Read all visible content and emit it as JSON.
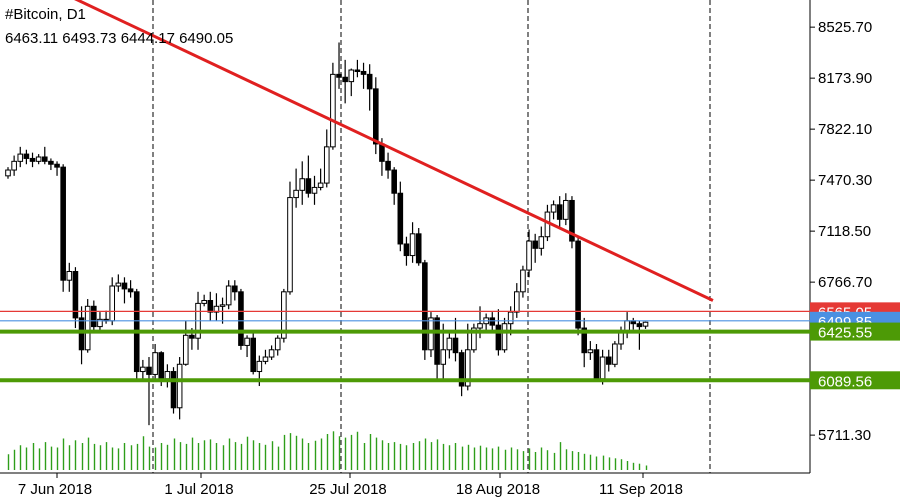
{
  "chart_data": {
    "type": "candlestick",
    "symbol": "#Bitcoin",
    "timeframe": "D1",
    "ohlc": {
      "open": "6463.11",
      "high": "6493.73",
      "low": "6444.17",
      "close": "6490.05"
    },
    "y_ticks": [
      "8525.70",
      "8173.90",
      "7822.10",
      "7470.30",
      "7118.50",
      "6766.70",
      "5711.30"
    ],
    "x_ticks": [
      "7 Jun 2018",
      "1 Jul 2018",
      "25 Jul 2018",
      "18 Aug 2018",
      "11 Sep 2018"
    ],
    "ylim": [
      5450,
      9020
    ],
    "levels": [
      {
        "value": "6565.05",
        "color": "#e53935",
        "kind": "line"
      },
      {
        "value": "6499.85",
        "color": "#4a90e2",
        "kind": "line"
      },
      {
        "value": "6425.55",
        "color": "#4d9a06",
        "kind": "zone"
      },
      {
        "value": "6089.56",
        "color": "#4d9a06",
        "kind": "zone"
      }
    ],
    "trendline": {
      "from": {
        "date": "2018-05-27",
        "price": 9040
      },
      "to": {
        "date": "2018-09-24",
        "price": 6640
      },
      "color": "#e02020"
    },
    "candles": [
      [
        "2018-06-01",
        7500,
        7560,
        7480,
        7540
      ],
      [
        "2018-06-02",
        7540,
        7640,
        7500,
        7600
      ],
      [
        "2018-06-03",
        7600,
        7700,
        7560,
        7650
      ],
      [
        "2018-06-04",
        7650,
        7680,
        7580,
        7620
      ],
      [
        "2018-06-05",
        7620,
        7660,
        7560,
        7600
      ],
      [
        "2018-06-06",
        7600,
        7650,
        7580,
        7630
      ],
      [
        "2018-06-07",
        7630,
        7700,
        7580,
        7600
      ],
      [
        "2018-06-08",
        7600,
        7620,
        7540,
        7580
      ],
      [
        "2018-06-09",
        7580,
        7600,
        7500,
        7560
      ],
      [
        "2018-06-10",
        7560,
        7580,
        6700,
        6780
      ],
      [
        "2018-06-11",
        6780,
        6900,
        6700,
        6840
      ],
      [
        "2018-06-12",
        6840,
        6870,
        6450,
        6520
      ],
      [
        "2018-06-13",
        6520,
        6600,
        6200,
        6300
      ],
      [
        "2018-06-14",
        6300,
        6650,
        6280,
        6600
      ],
      [
        "2018-06-15",
        6600,
        6640,
        6420,
        6460
      ],
      [
        "2018-06-16",
        6460,
        6560,
        6420,
        6510
      ],
      [
        "2018-06-17",
        6510,
        6570,
        6480,
        6500
      ],
      [
        "2018-06-18",
        6500,
        6800,
        6470,
        6740
      ],
      [
        "2018-06-19",
        6740,
        6820,
        6700,
        6760
      ],
      [
        "2018-06-20",
        6760,
        6800,
        6620,
        6720
      ],
      [
        "2018-06-21",
        6720,
        6780,
        6660,
        6700
      ],
      [
        "2018-06-22",
        6700,
        6720,
        6080,
        6150
      ],
      [
        "2018-06-23",
        6150,
        6230,
        6100,
        6180
      ],
      [
        "2018-06-24",
        6180,
        6250,
        5780,
        6130
      ],
      [
        "2018-06-25",
        6130,
        6340,
        6100,
        6280
      ],
      [
        "2018-06-26",
        6280,
        6290,
        6050,
        6100
      ],
      [
        "2018-06-27",
        6100,
        6200,
        6040,
        6150
      ],
      [
        "2018-06-28",
        6150,
        6180,
        5860,
        5900
      ],
      [
        "2018-06-29",
        5900,
        6250,
        5820,
        6200
      ],
      [
        "2018-06-30",
        6200,
        6500,
        6190,
        6400
      ],
      [
        "2018-07-01",
        6400,
        6450,
        6300,
        6380
      ],
      [
        "2018-07-02",
        6380,
        6700,
        6300,
        6620
      ],
      [
        "2018-07-03",
        6620,
        6680,
        6600,
        6640
      ],
      [
        "2018-07-04",
        6640,
        6700,
        6500,
        6560
      ],
      [
        "2018-07-05",
        6560,
        6690,
        6500,
        6600
      ],
      [
        "2018-07-06",
        6600,
        6660,
        6480,
        6610
      ],
      [
        "2018-07-07",
        6610,
        6780,
        6580,
        6740
      ],
      [
        "2018-07-08",
        6740,
        6780,
        6640,
        6700
      ],
      [
        "2018-07-09",
        6700,
        6720,
        6300,
        6330
      ],
      [
        "2018-07-10",
        6330,
        6400,
        6250,
        6380
      ],
      [
        "2018-07-11",
        6380,
        6420,
        6130,
        6150
      ],
      [
        "2018-07-12",
        6150,
        6260,
        6050,
        6220
      ],
      [
        "2018-07-13",
        6220,
        6300,
        6200,
        6250
      ],
      [
        "2018-07-14",
        6250,
        6330,
        6230,
        6300
      ],
      [
        "2018-07-15",
        6300,
        6400,
        6260,
        6380
      ],
      [
        "2018-07-16",
        6380,
        6720,
        6350,
        6700
      ],
      [
        "2018-07-17",
        6700,
        7460,
        6680,
        7350
      ],
      [
        "2018-07-18",
        7350,
        7550,
        7280,
        7400
      ],
      [
        "2018-07-19",
        7400,
        7600,
        7300,
        7480
      ],
      [
        "2018-07-20",
        7480,
        7640,
        7350,
        7380
      ],
      [
        "2018-07-21",
        7380,
        7500,
        7300,
        7420
      ],
      [
        "2018-07-22",
        7420,
        7550,
        7400,
        7450
      ],
      [
        "2018-07-23",
        7450,
        7820,
        7420,
        7700
      ],
      [
        "2018-07-24",
        7700,
        8280,
        7680,
        8200
      ],
      [
        "2018-07-25",
        8200,
        8420,
        8100,
        8180
      ],
      [
        "2018-07-26",
        8180,
        8300,
        8000,
        8150
      ],
      [
        "2018-07-27",
        8150,
        8240,
        8050,
        8230
      ],
      [
        "2018-07-28",
        8230,
        8300,
        8180,
        8220
      ],
      [
        "2018-07-29",
        8220,
        8280,
        8100,
        8200
      ],
      [
        "2018-07-30",
        8200,
        8270,
        7950,
        8100
      ],
      [
        "2018-07-31",
        8100,
        8180,
        7650,
        7720
      ],
      [
        "2018-08-01",
        7720,
        7760,
        7500,
        7600
      ],
      [
        "2018-08-02",
        7600,
        7660,
        7480,
        7540
      ],
      [
        "2018-08-03",
        7540,
        7560,
        7300,
        7380
      ],
      [
        "2018-08-04",
        7380,
        7460,
        6980,
        7030
      ],
      [
        "2018-08-05",
        7030,
        7080,
        6880,
        6950
      ],
      [
        "2018-08-06",
        6950,
        7180,
        6900,
        7100
      ],
      [
        "2018-08-07",
        7100,
        7140,
        6880,
        6900
      ],
      [
        "2018-08-08",
        6900,
        6920,
        6230,
        6300
      ],
      [
        "2018-08-09",
        6300,
        6560,
        6250,
        6520
      ],
      [
        "2018-08-10",
        6520,
        6540,
        6100,
        6200
      ],
      [
        "2018-08-11",
        6200,
        6480,
        6100,
        6300
      ],
      [
        "2018-08-12",
        6300,
        6420,
        6240,
        6380
      ],
      [
        "2018-08-13",
        6380,
        6520,
        6220,
        6280
      ],
      [
        "2018-08-14",
        6280,
        6300,
        5980,
        6050
      ],
      [
        "2018-08-15",
        6050,
        6480,
        6020,
        6300
      ],
      [
        "2018-08-16",
        6300,
        6480,
        6280,
        6450
      ],
      [
        "2018-08-17",
        6450,
        6600,
        6380,
        6480
      ],
      [
        "2018-08-18",
        6480,
        6550,
        6420,
        6520
      ],
      [
        "2018-08-19",
        6520,
        6560,
        6430,
        6470
      ],
      [
        "2018-08-20",
        6470,
        6580,
        6260,
        6300
      ],
      [
        "2018-08-21",
        6300,
        6520,
        6280,
        6480
      ],
      [
        "2018-08-22",
        6480,
        6600,
        6400,
        6560
      ],
      [
        "2018-08-23",
        6560,
        6760,
        6520,
        6700
      ],
      [
        "2018-08-24",
        6700,
        6880,
        6660,
        6850
      ],
      [
        "2018-08-25",
        6850,
        7130,
        6800,
        7050
      ],
      [
        "2018-08-26",
        7050,
        7100,
        6900,
        7000
      ],
      [
        "2018-08-27",
        7000,
        7150,
        6950,
        7080
      ],
      [
        "2018-08-28",
        7080,
        7300,
        7050,
        7250
      ],
      [
        "2018-08-29",
        7250,
        7330,
        7200,
        7300
      ],
      [
        "2018-08-30",
        7300,
        7360,
        7150,
        7200
      ],
      [
        "2018-08-31",
        7200,
        7380,
        7160,
        7330
      ],
      [
        "2018-09-01",
        7330,
        7360,
        7000,
        7050
      ],
      [
        "2018-09-02",
        7050,
        7080,
        6400,
        6450
      ],
      [
        "2018-09-03",
        6450,
        6520,
        6180,
        6280
      ],
      [
        "2018-09-04",
        6280,
        6360,
        6230,
        6300
      ],
      [
        "2018-09-05",
        6300,
        6340,
        6080,
        6100
      ],
      [
        "2018-09-06",
        6100,
        6300,
        6060,
        6250
      ],
      [
        "2018-09-07",
        6250,
        6300,
        6150,
        6200
      ],
      [
        "2018-09-08",
        6200,
        6360,
        6180,
        6340
      ],
      [
        "2018-09-09",
        6340,
        6460,
        6300,
        6420
      ],
      [
        "2018-09-10",
        6420,
        6560,
        6380,
        6500
      ],
      [
        "2018-09-11",
        6500,
        6520,
        6440,
        6480
      ],
      [
        "2018-09-12",
        6480,
        6500,
        6300,
        6460
      ],
      [
        "2018-09-13",
        6463.11,
        6493.73,
        6444.17,
        6490.05
      ]
    ],
    "volume": [
      0.35,
      0.45,
      0.55,
      0.5,
      0.6,
      0.48,
      0.62,
      0.52,
      0.5,
      0.7,
      0.55,
      0.66,
      0.6,
      0.72,
      0.58,
      0.55,
      0.62,
      0.5,
      0.48,
      0.6,
      0.55,
      0.58,
      0.75,
      0.52,
      0.5,
      0.6,
      0.56,
      0.7,
      0.62,
      0.58,
      0.72,
      0.6,
      0.66,
      0.68,
      0.6,
      0.55,
      0.7,
      0.62,
      0.58,
      0.74,
      0.66,
      0.6,
      0.56,
      0.64,
      0.52,
      0.78,
      0.82,
      0.76,
      0.7,
      0.6,
      0.65,
      0.7,
      0.8,
      0.86,
      0.75,
      0.72,
      0.78,
      0.85,
      0.6,
      0.8,
      0.72,
      0.66,
      0.6,
      0.62,
      0.58,
      0.55,
      0.6,
      0.64,
      0.7,
      0.62,
      0.68,
      0.58,
      0.55,
      0.6,
      0.52,
      0.56,
      0.5,
      0.54,
      0.5,
      0.48,
      0.52,
      0.45,
      0.5,
      0.46,
      0.42,
      0.48,
      0.4,
      0.5,
      0.44,
      0.38,
      0.62,
      0.46,
      0.42,
      0.4,
      0.36,
      0.34,
      0.3,
      0.32,
      0.28,
      0.26,
      0.24,
      0.2,
      0.16,
      0.14,
      0.1
    ]
  }
}
